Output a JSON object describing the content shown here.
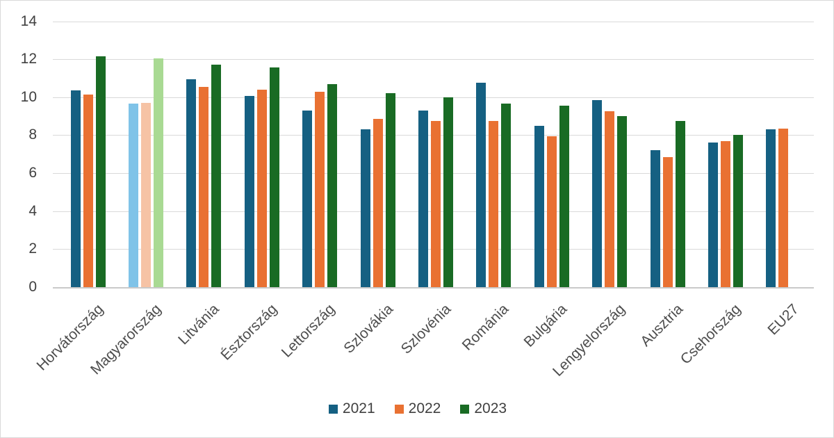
{
  "chart_data": {
    "type": "bar",
    "title": "",
    "xlabel": "",
    "ylabel": "",
    "categories": [
      "Horvátország",
      "Magyarország",
      "Litvánia",
      "Észtország",
      "Lettország",
      "Szlovákia",
      "Szlovénia",
      "Románia",
      "Bulgária",
      "Lengyelország",
      "Ausztria",
      "Csehország",
      "EU27"
    ],
    "series": [
      {
        "name": "2021",
        "color": "#156082",
        "highlight_color": "#7fc3e8",
        "values": [
          10.35,
          9.65,
          10.95,
          10.05,
          9.3,
          8.3,
          9.3,
          10.75,
          8.5,
          9.85,
          7.2,
          7.6,
          8.3
        ]
      },
      {
        "name": "2022",
        "color": "#e97132",
        "highlight_color": "#f6c3a5",
        "values": [
          10.15,
          9.7,
          10.55,
          10.4,
          10.3,
          8.85,
          8.75,
          8.75,
          7.95,
          9.25,
          6.85,
          7.7,
          8.35
        ]
      },
      {
        "name": "2023",
        "color": "#196b24",
        "highlight_color": "#a9da93",
        "values": [
          12.15,
          12.05,
          11.7,
          11.55,
          10.7,
          10.2,
          10.0,
          9.65,
          9.55,
          9.0,
          8.75,
          8.0,
          null
        ]
      }
    ],
    "highlighted_category": "Magyarország",
    "ylim": [
      0,
      14
    ],
    "y_ticks": [
      0,
      2,
      4,
      6,
      8,
      10,
      12,
      14
    ],
    "grid": "horizontal",
    "legend_position": "bottom-center",
    "colors": {
      "gridline": "#d9d9d9",
      "axis_line": "#c9c9c9",
      "tick_text": "#404040",
      "category_text": "#4d4d4d",
      "chart_border": "#d9d9d9"
    }
  }
}
